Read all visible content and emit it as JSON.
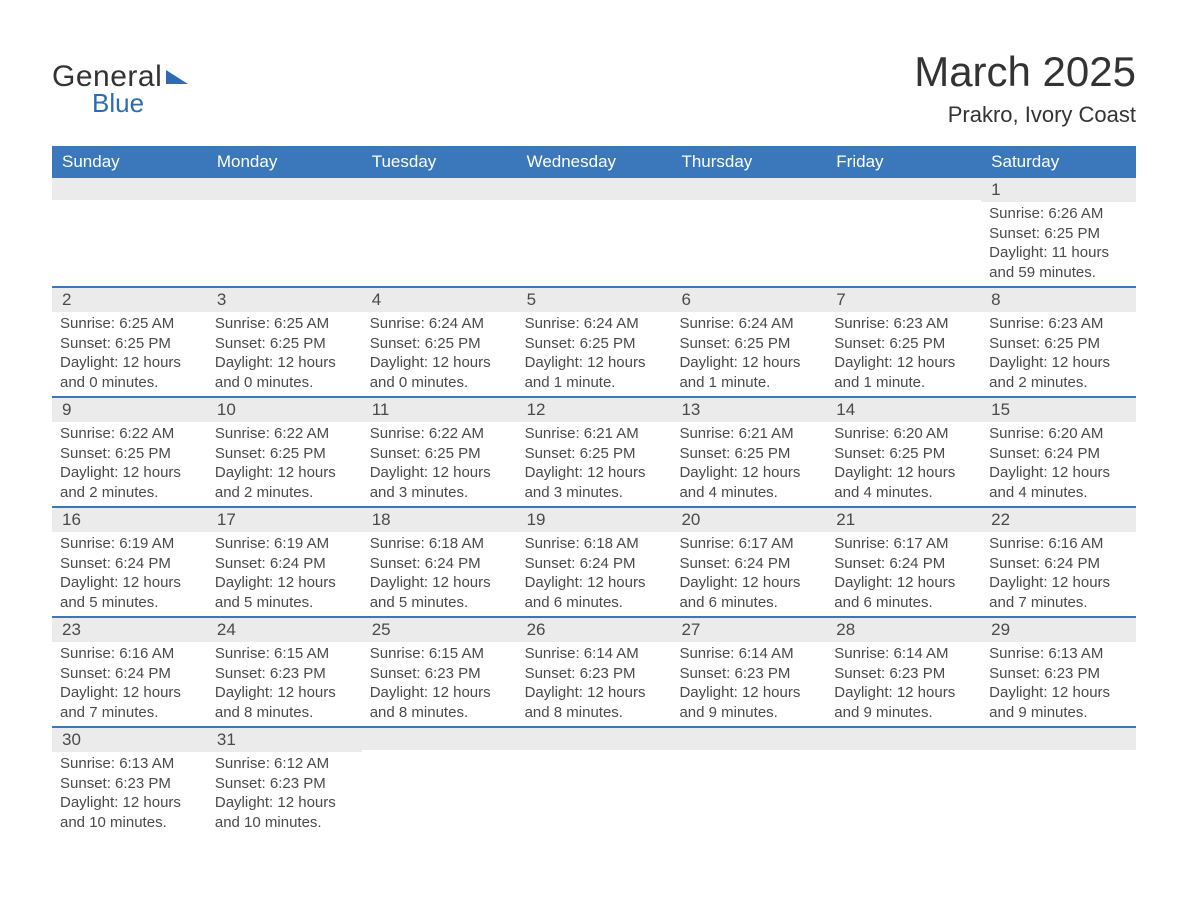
{
  "brand": {
    "name1": "General",
    "name2": "Blue"
  },
  "title": "March 2025",
  "location": "Prakro, Ivory Coast",
  "colors": {
    "header_bg": "#3a78bb",
    "header_text": "#ffffff",
    "daynum_bg": "#ebebeb",
    "row_divider": "#3a78bb",
    "body_text": "#4a4a4a",
    "page_bg": "#ffffff",
    "logo_blue": "#2e6bb0"
  },
  "weekdays": [
    "Sunday",
    "Monday",
    "Tuesday",
    "Wednesday",
    "Thursday",
    "Friday",
    "Saturday"
  ],
  "weeks": [
    [
      null,
      null,
      null,
      null,
      null,
      null,
      {
        "day": "1",
        "sunrise": "Sunrise: 6:26 AM",
        "sunset": "Sunset: 6:25 PM",
        "daylight": "Daylight: 11 hours and 59 minutes."
      }
    ],
    [
      {
        "day": "2",
        "sunrise": "Sunrise: 6:25 AM",
        "sunset": "Sunset: 6:25 PM",
        "daylight": "Daylight: 12 hours and 0 minutes."
      },
      {
        "day": "3",
        "sunrise": "Sunrise: 6:25 AM",
        "sunset": "Sunset: 6:25 PM",
        "daylight": "Daylight: 12 hours and 0 minutes."
      },
      {
        "day": "4",
        "sunrise": "Sunrise: 6:24 AM",
        "sunset": "Sunset: 6:25 PM",
        "daylight": "Daylight: 12 hours and 0 minutes."
      },
      {
        "day": "5",
        "sunrise": "Sunrise: 6:24 AM",
        "sunset": "Sunset: 6:25 PM",
        "daylight": "Daylight: 12 hours and 1 minute."
      },
      {
        "day": "6",
        "sunrise": "Sunrise: 6:24 AM",
        "sunset": "Sunset: 6:25 PM",
        "daylight": "Daylight: 12 hours and 1 minute."
      },
      {
        "day": "7",
        "sunrise": "Sunrise: 6:23 AM",
        "sunset": "Sunset: 6:25 PM",
        "daylight": "Daylight: 12 hours and 1 minute."
      },
      {
        "day": "8",
        "sunrise": "Sunrise: 6:23 AM",
        "sunset": "Sunset: 6:25 PM",
        "daylight": "Daylight: 12 hours and 2 minutes."
      }
    ],
    [
      {
        "day": "9",
        "sunrise": "Sunrise: 6:22 AM",
        "sunset": "Sunset: 6:25 PM",
        "daylight": "Daylight: 12 hours and 2 minutes."
      },
      {
        "day": "10",
        "sunrise": "Sunrise: 6:22 AM",
        "sunset": "Sunset: 6:25 PM",
        "daylight": "Daylight: 12 hours and 2 minutes."
      },
      {
        "day": "11",
        "sunrise": "Sunrise: 6:22 AM",
        "sunset": "Sunset: 6:25 PM",
        "daylight": "Daylight: 12 hours and 3 minutes."
      },
      {
        "day": "12",
        "sunrise": "Sunrise: 6:21 AM",
        "sunset": "Sunset: 6:25 PM",
        "daylight": "Daylight: 12 hours and 3 minutes."
      },
      {
        "day": "13",
        "sunrise": "Sunrise: 6:21 AM",
        "sunset": "Sunset: 6:25 PM",
        "daylight": "Daylight: 12 hours and 4 minutes."
      },
      {
        "day": "14",
        "sunrise": "Sunrise: 6:20 AM",
        "sunset": "Sunset: 6:25 PM",
        "daylight": "Daylight: 12 hours and 4 minutes."
      },
      {
        "day": "15",
        "sunrise": "Sunrise: 6:20 AM",
        "sunset": "Sunset: 6:24 PM",
        "daylight": "Daylight: 12 hours and 4 minutes."
      }
    ],
    [
      {
        "day": "16",
        "sunrise": "Sunrise: 6:19 AM",
        "sunset": "Sunset: 6:24 PM",
        "daylight": "Daylight: 12 hours and 5 minutes."
      },
      {
        "day": "17",
        "sunrise": "Sunrise: 6:19 AM",
        "sunset": "Sunset: 6:24 PM",
        "daylight": "Daylight: 12 hours and 5 minutes."
      },
      {
        "day": "18",
        "sunrise": "Sunrise: 6:18 AM",
        "sunset": "Sunset: 6:24 PM",
        "daylight": "Daylight: 12 hours and 5 minutes."
      },
      {
        "day": "19",
        "sunrise": "Sunrise: 6:18 AM",
        "sunset": "Sunset: 6:24 PM",
        "daylight": "Daylight: 12 hours and 6 minutes."
      },
      {
        "day": "20",
        "sunrise": "Sunrise: 6:17 AM",
        "sunset": "Sunset: 6:24 PM",
        "daylight": "Daylight: 12 hours and 6 minutes."
      },
      {
        "day": "21",
        "sunrise": "Sunrise: 6:17 AM",
        "sunset": "Sunset: 6:24 PM",
        "daylight": "Daylight: 12 hours and 6 minutes."
      },
      {
        "day": "22",
        "sunrise": "Sunrise: 6:16 AM",
        "sunset": "Sunset: 6:24 PM",
        "daylight": "Daylight: 12 hours and 7 minutes."
      }
    ],
    [
      {
        "day": "23",
        "sunrise": "Sunrise: 6:16 AM",
        "sunset": "Sunset: 6:24 PM",
        "daylight": "Daylight: 12 hours and 7 minutes."
      },
      {
        "day": "24",
        "sunrise": "Sunrise: 6:15 AM",
        "sunset": "Sunset: 6:23 PM",
        "daylight": "Daylight: 12 hours and 8 minutes."
      },
      {
        "day": "25",
        "sunrise": "Sunrise: 6:15 AM",
        "sunset": "Sunset: 6:23 PM",
        "daylight": "Daylight: 12 hours and 8 minutes."
      },
      {
        "day": "26",
        "sunrise": "Sunrise: 6:14 AM",
        "sunset": "Sunset: 6:23 PM",
        "daylight": "Daylight: 12 hours and 8 minutes."
      },
      {
        "day": "27",
        "sunrise": "Sunrise: 6:14 AM",
        "sunset": "Sunset: 6:23 PM",
        "daylight": "Daylight: 12 hours and 9 minutes."
      },
      {
        "day": "28",
        "sunrise": "Sunrise: 6:14 AM",
        "sunset": "Sunset: 6:23 PM",
        "daylight": "Daylight: 12 hours and 9 minutes."
      },
      {
        "day": "29",
        "sunrise": "Sunrise: 6:13 AM",
        "sunset": "Sunset: 6:23 PM",
        "daylight": "Daylight: 12 hours and 9 minutes."
      }
    ],
    [
      {
        "day": "30",
        "sunrise": "Sunrise: 6:13 AM",
        "sunset": "Sunset: 6:23 PM",
        "daylight": "Daylight: 12 hours and 10 minutes."
      },
      {
        "day": "31",
        "sunrise": "Sunrise: 6:12 AM",
        "sunset": "Sunset: 6:23 PM",
        "daylight": "Daylight: 12 hours and 10 minutes."
      },
      null,
      null,
      null,
      null,
      null
    ]
  ]
}
